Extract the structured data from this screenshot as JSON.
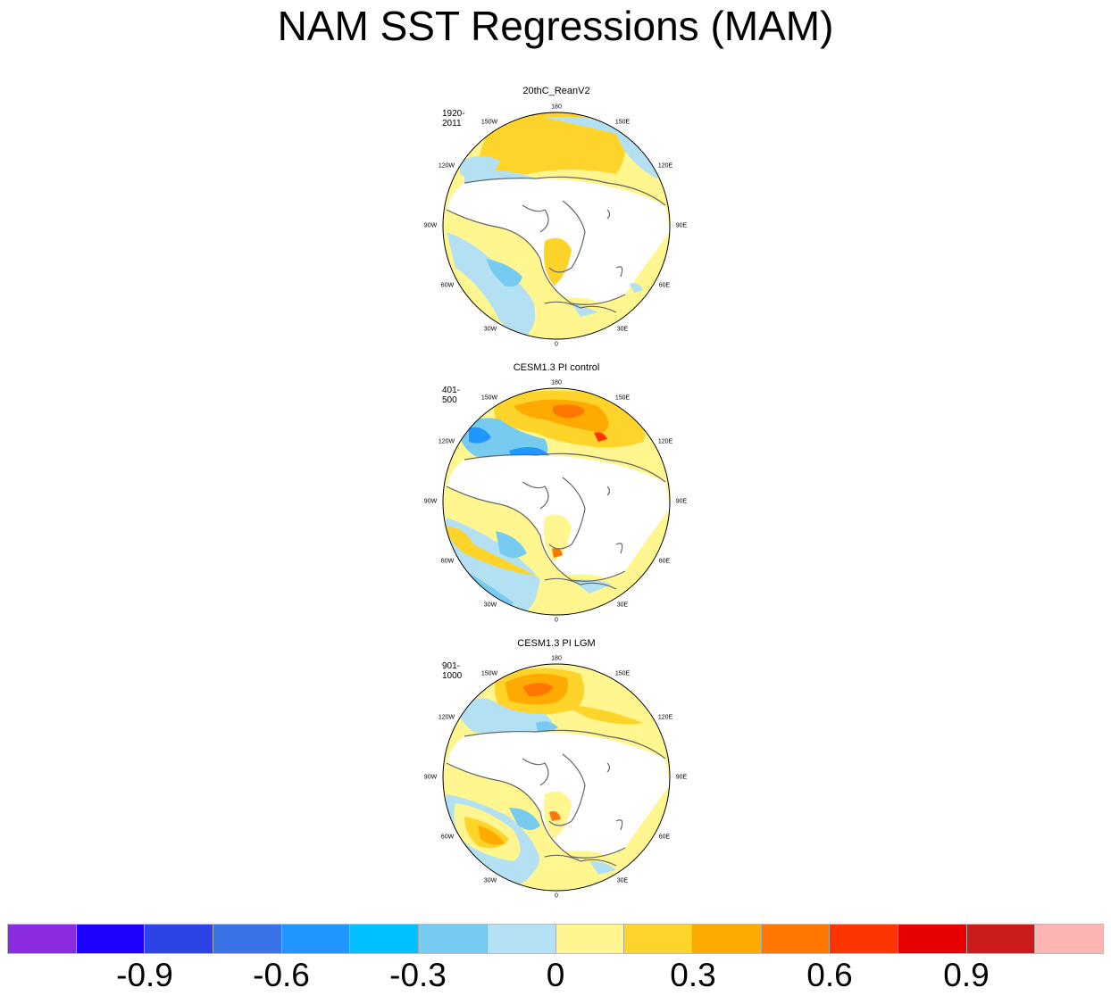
{
  "title": "NAM SST Regressions (MAM)",
  "panels": [
    {
      "title": "20thC_ReanV2",
      "period": "1920-2011"
    },
    {
      "title": "CESM1.3 PI control",
      "period": "401-500"
    },
    {
      "title": "CESM1.3 PI LGM",
      "period": "901-1000"
    }
  ],
  "lon_labels": [
    "180",
    "150E",
    "120E",
    "90E",
    "60E",
    "30E",
    "0",
    "30W",
    "60W",
    "90W",
    "120W",
    "150W"
  ],
  "colorbar": {
    "colors": [
      "#8a2be2",
      "#1e00ff",
      "#2c44e6",
      "#3a72e8",
      "#1f97ff",
      "#00c0ff",
      "#78cbf0",
      "#b4e0f3",
      "#fff68f",
      "#ffd42a",
      "#ffaa00",
      "#ff7700",
      "#ff3500",
      "#e60000",
      "#cc1b1b",
      "#ffb4b4"
    ],
    "tick_labels": [
      "-0.9",
      "-0.6",
      "-0.3",
      "0",
      "0.3",
      "0.6",
      "0.9"
    ]
  }
}
